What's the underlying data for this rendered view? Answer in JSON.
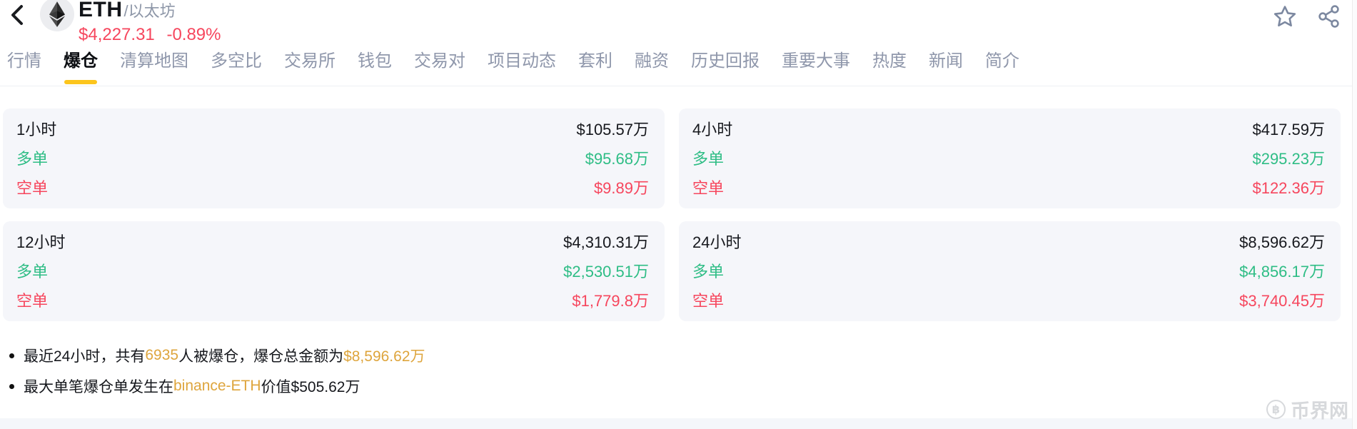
{
  "header": {
    "coin": {
      "symbol": "ETH",
      "name_suffix": "/以太坊",
      "price": "$4,227.31",
      "change": "-0.89%"
    }
  },
  "tabs": [
    {
      "label": "行情",
      "active": false
    },
    {
      "label": "爆仓",
      "active": true
    },
    {
      "label": "清算地图",
      "active": false
    },
    {
      "label": "多空比",
      "active": false
    },
    {
      "label": "交易所",
      "active": false
    },
    {
      "label": "钱包",
      "active": false
    },
    {
      "label": "交易对",
      "active": false
    },
    {
      "label": "项目动态",
      "active": false
    },
    {
      "label": "套利",
      "active": false
    },
    {
      "label": "融资",
      "active": false
    },
    {
      "label": "历史回报",
      "active": false
    },
    {
      "label": "重要大事",
      "active": false
    },
    {
      "label": "热度",
      "active": false
    },
    {
      "label": "新闻",
      "active": false
    },
    {
      "label": "简介",
      "active": false
    }
  ],
  "cards": {
    "labels": {
      "long": "多单",
      "short": "空单"
    },
    "items": [
      {
        "period": "1小时",
        "total": "$105.57万",
        "long": "$95.68万",
        "short": "$9.89万"
      },
      {
        "period": "4小时",
        "total": "$417.59万",
        "long": "$295.23万",
        "short": "$122.36万"
      },
      {
        "period": "12小时",
        "total": "$4,310.31万",
        "long": "$2,530.51万",
        "short": "$1,779.8万"
      },
      {
        "period": "24小时",
        "total": "$8,596.62万",
        "long": "$4,856.17万",
        "short": "$3,740.45万"
      }
    ]
  },
  "notes": [
    {
      "segments": [
        {
          "text": "最近24小时，共有",
          "highlight": false
        },
        {
          "text": "6935",
          "highlight": true
        },
        {
          "text": "人被爆仓，爆仓总金额为",
          "highlight": false
        },
        {
          "text": "$8,596.62万",
          "highlight": true
        }
      ]
    },
    {
      "segments": [
        {
          "text": "最大单笔爆仓单发生在",
          "highlight": false
        },
        {
          "text": "binance-ETH",
          "highlight": true
        },
        {
          "text": "价值$505.62万",
          "highlight": false
        }
      ]
    }
  ],
  "watermark": {
    "coin_glyph": "฿",
    "text": "币界网"
  },
  "colors": {
    "long_green": "#2ebd85",
    "short_red": "#f6465d",
    "price_red": "#f6465d",
    "highlight_gold": "#dea53d",
    "active_tab_underline": "#fcc51d",
    "tab_gray": "#8f97ab",
    "card_background": "#f5f6fa"
  }
}
